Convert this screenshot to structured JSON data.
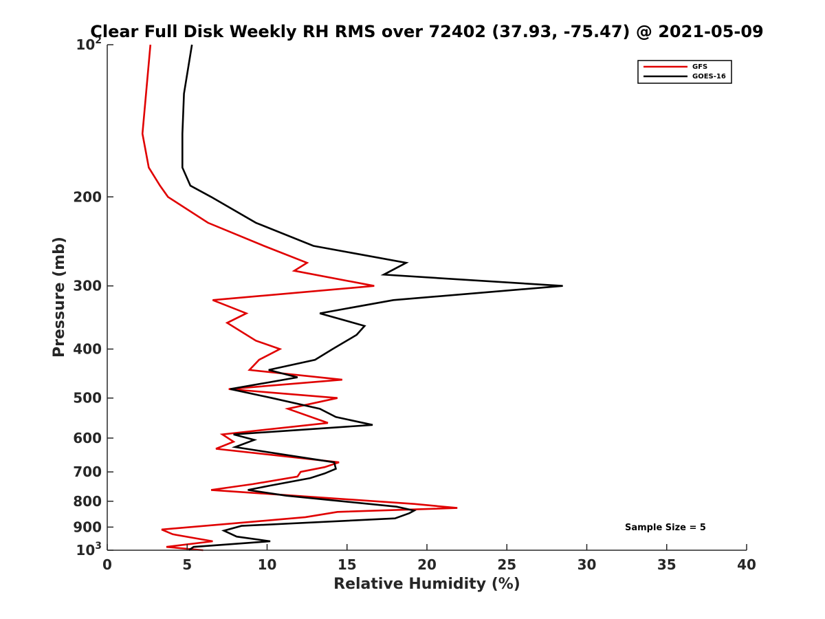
{
  "chart_data": {
    "type": "line",
    "title": "Clear Full Disk Weekly RH RMS over 72402 (37.93, -75.47) @ 2021-05-09",
    "xlabel": "Relative Humidity (%)",
    "ylabel": "Pressure (mb)",
    "xlim": [
      0,
      40
    ],
    "ylim": [
      100,
      1000
    ],
    "yscale": "log",
    "y_reversed": true,
    "x_ticks": [
      "0",
      "5",
      "10",
      "15",
      "20",
      "25",
      "30",
      "35",
      "40"
    ],
    "y_ticks": [
      {
        "value": 100,
        "label": "10",
        "sup": "2"
      },
      {
        "value": 200,
        "label": "200",
        "sup": ""
      },
      {
        "value": 300,
        "label": "300",
        "sup": ""
      },
      {
        "value": 400,
        "label": "400",
        "sup": ""
      },
      {
        "value": 500,
        "label": "500",
        "sup": ""
      },
      {
        "value": 600,
        "label": "600",
        "sup": ""
      },
      {
        "value": 700,
        "label": "700",
        "sup": ""
      },
      {
        "value": 800,
        "label": "800",
        "sup": ""
      },
      {
        "value": 900,
        "label": "900",
        "sup": ""
      },
      {
        "value": 1000,
        "label": "10",
        "sup": "3"
      }
    ],
    "legend_position": "top-right",
    "annotation": "Sample Size = 5",
    "series": [
      {
        "name": "GFS",
        "color": "#e00000",
        "points": [
          [
            2.7,
            100
          ],
          [
            2.2,
            150
          ],
          [
            2.6,
            175
          ],
          [
            3.3,
            190
          ],
          [
            3.8,
            200
          ],
          [
            6.3,
            225
          ],
          [
            9.8,
            250
          ],
          [
            12.5,
            270
          ],
          [
            11.7,
            280
          ],
          [
            16.7,
            300
          ],
          [
            6.6,
            320
          ],
          [
            8.7,
            340
          ],
          [
            7.5,
            355
          ],
          [
            9.3,
            385
          ],
          [
            10.8,
            400
          ],
          [
            9.5,
            420
          ],
          [
            8.9,
            440
          ],
          [
            14.7,
            460
          ],
          [
            7.6,
            480
          ],
          [
            14.4,
            500
          ],
          [
            11.3,
            525
          ],
          [
            13.8,
            560
          ],
          [
            7.2,
            590
          ],
          [
            7.9,
            610
          ],
          [
            6.8,
            630
          ],
          [
            14.5,
            670
          ],
          [
            13.6,
            685
          ],
          [
            12.1,
            700
          ],
          [
            11.9,
            715
          ],
          [
            9.1,
            740
          ],
          [
            6.5,
            760
          ],
          [
            19.2,
            810
          ],
          [
            21.9,
            825
          ],
          [
            14.4,
            840
          ],
          [
            12.4,
            860
          ],
          [
            8.8,
            880
          ],
          [
            3.4,
            910
          ],
          [
            4.1,
            930
          ],
          [
            6.6,
            960
          ],
          [
            3.7,
            985
          ],
          [
            6.0,
            1000
          ]
        ]
      },
      {
        "name": "GOES-16",
        "color": "#000000",
        "points": [
          [
            5.3,
            100
          ],
          [
            4.8,
            125
          ],
          [
            4.7,
            150
          ],
          [
            4.7,
            175
          ],
          [
            5.2,
            190
          ],
          [
            6.5,
            200
          ],
          [
            9.3,
            225
          ],
          [
            12.9,
            250
          ],
          [
            18.7,
            270
          ],
          [
            17.3,
            285
          ],
          [
            28.5,
            300
          ],
          [
            17.9,
            320
          ],
          [
            13.3,
            340
          ],
          [
            16.1,
            360
          ],
          [
            15.6,
            375
          ],
          [
            14.1,
            400
          ],
          [
            13.0,
            420
          ],
          [
            10.1,
            440
          ],
          [
            11.9,
            455
          ],
          [
            7.7,
            480
          ],
          [
            10.3,
            500
          ],
          [
            13.3,
            525
          ],
          [
            14.3,
            545
          ],
          [
            16.6,
            565
          ],
          [
            7.9,
            590
          ],
          [
            9.2,
            605
          ],
          [
            8.0,
            625
          ],
          [
            14.2,
            670
          ],
          [
            14.3,
            690
          ],
          [
            13.6,
            705
          ],
          [
            12.7,
            720
          ],
          [
            10.2,
            745
          ],
          [
            8.8,
            760
          ],
          [
            11.2,
            780
          ],
          [
            18.1,
            820
          ],
          [
            19.2,
            835
          ],
          [
            18.9,
            845
          ],
          [
            18.0,
            865
          ],
          [
            8.4,
            895
          ],
          [
            7.3,
            915
          ],
          [
            8.1,
            940
          ],
          [
            10.2,
            960
          ],
          [
            5.4,
            985
          ],
          [
            5.1,
            1000
          ]
        ]
      }
    ]
  }
}
